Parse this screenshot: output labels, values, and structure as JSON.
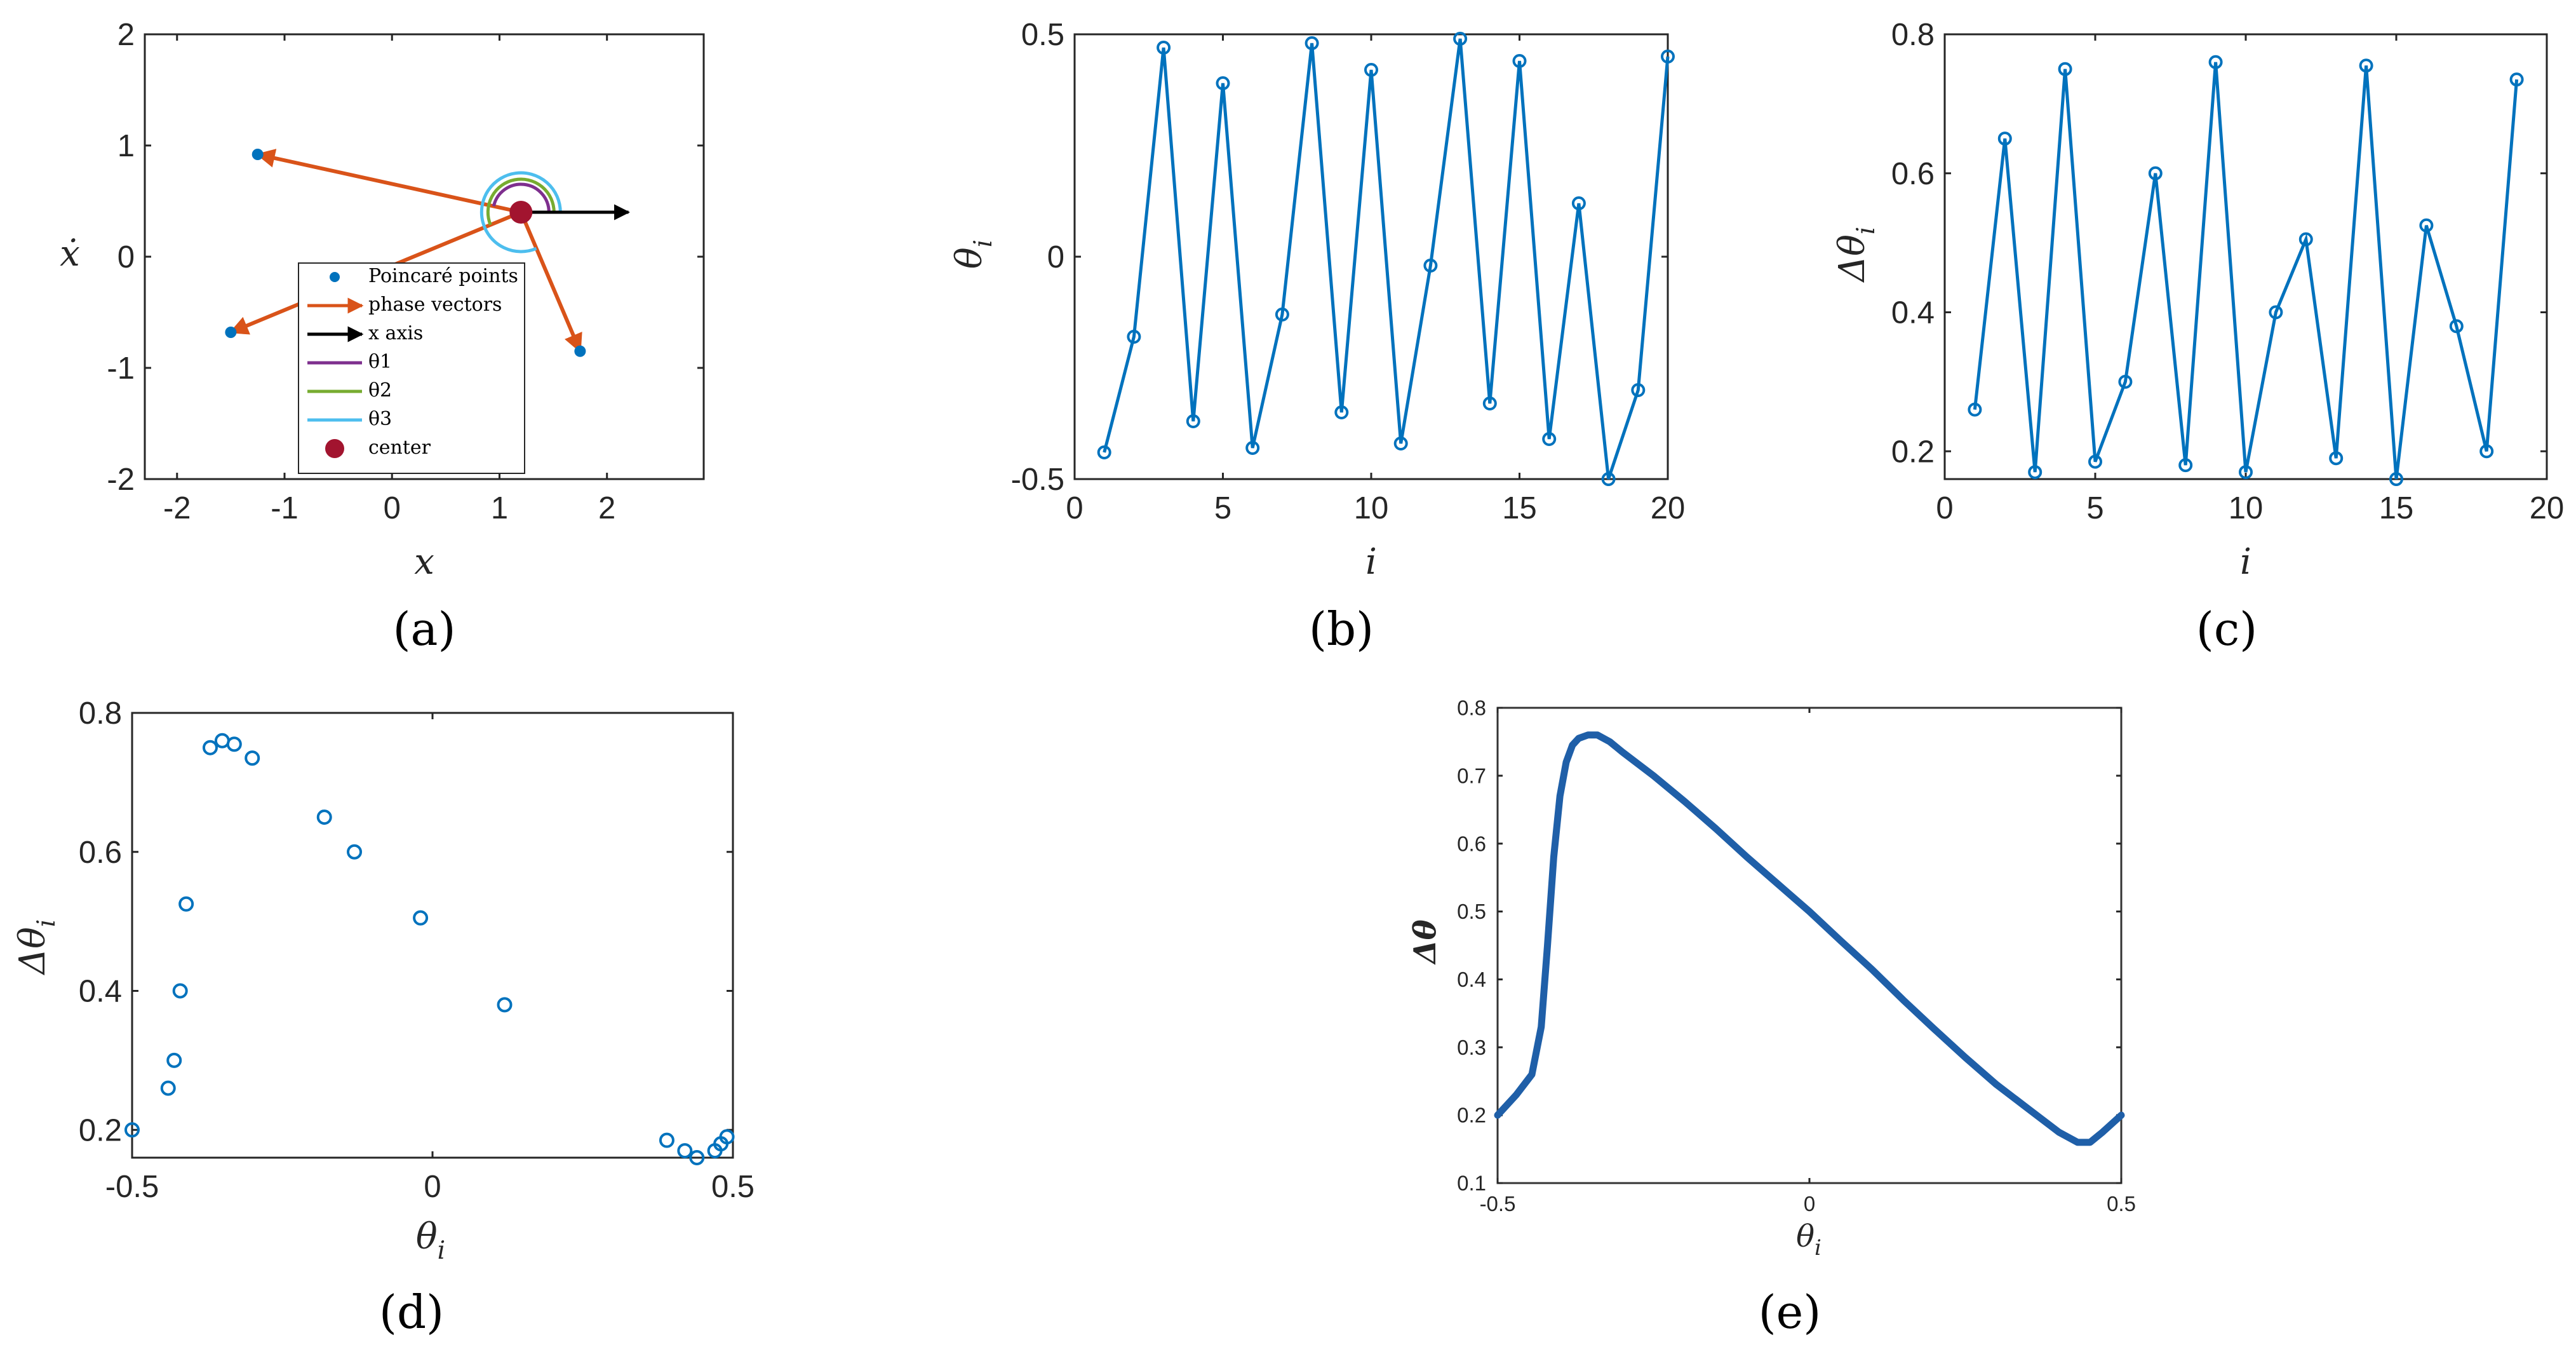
{
  "colors": {
    "series_blue": "#0072BD",
    "phase_orange": "#D95319",
    "theta1_purple": "#7E2F8E",
    "theta2_green": "#77AC30",
    "theta3_cyan": "#4DBEEE",
    "center_red": "#A2142F",
    "axis": "#262626",
    "xaxis_black": "#000000"
  },
  "panel_labels": [
    "(a)",
    "(b)",
    "(c)",
    "(d)",
    "(e)"
  ],
  "chart_data": [
    {
      "id": "a",
      "type": "scatter",
      "xlabel": "x",
      "ylabel": "ẋ",
      "xlim": [
        -2.3,
        2.9
      ],
      "ylim": [
        -2,
        2
      ],
      "xticks": [
        "-2",
        "-1",
        "0",
        "1",
        "2"
      ],
      "yticks": [
        "2",
        "1",
        "0",
        "-1",
        "-2"
      ],
      "center": [
        1.2,
        0.4
      ],
      "poincare_points": [
        [
          -1.25,
          0.92
        ],
        [
          -1.5,
          -0.68
        ],
        [
          1.75,
          -0.85
        ]
      ],
      "x_axis_arrow_end": [
        2.2,
        0.4
      ],
      "legend": [
        {
          "label": "Poincaré points",
          "kind": "dot",
          "color_key": "series_blue"
        },
        {
          "label": "phase vectors",
          "kind": "arrow",
          "color_key": "phase_orange"
        },
        {
          "label": "x axis",
          "kind": "arrow",
          "color_key": "xaxis_black"
        },
        {
          "label": "θ1",
          "kind": "line",
          "color_key": "theta1_purple"
        },
        {
          "label": "θ2",
          "kind": "line",
          "color_key": "theta2_green"
        },
        {
          "label": "θ3",
          "kind": "line",
          "color_key": "theta3_cyan"
        },
        {
          "label": "center",
          "kind": "bigdot",
          "color_key": "center_red"
        }
      ],
      "legend_placement": "bottom-center"
    },
    {
      "id": "b",
      "type": "line",
      "xlabel": "i",
      "ylabel": "θ_i",
      "xlim": [
        0,
        20
      ],
      "ylim": [
        -0.5,
        0.5
      ],
      "xticks": [
        "0",
        "5",
        "10",
        "15",
        "20"
      ],
      "yticks": [
        "0.5",
        "0",
        "-0.5"
      ],
      "x": [
        1,
        2,
        3,
        4,
        5,
        6,
        7,
        8,
        9,
        10,
        11,
        12,
        13,
        14,
        15,
        16,
        17,
        18,
        19,
        20
      ],
      "y": [
        -0.44,
        -0.18,
        0.47,
        -0.37,
        0.39,
        -0.43,
        -0.13,
        0.48,
        -0.35,
        0.42,
        -0.42,
        -0.02,
        0.49,
        -0.33,
        0.44,
        -0.41,
        0.12,
        -0.5,
        -0.3,
        0.45
      ]
    },
    {
      "id": "c",
      "type": "line",
      "xlabel": "i",
      "ylabel": "Δθ_i",
      "xlim": [
        0,
        20
      ],
      "ylim": [
        0.16,
        0.8
      ],
      "xticks": [
        "0",
        "5",
        "10",
        "15",
        "20"
      ],
      "yticks": [
        "0.8",
        "0.6",
        "0.4",
        "0.2"
      ],
      "x": [
        1,
        2,
        3,
        4,
        5,
        6,
        7,
        8,
        9,
        10,
        11,
        12,
        13,
        14,
        15,
        16,
        17,
        18,
        19
      ],
      "y": [
        0.26,
        0.65,
        0.17,
        0.75,
        0.185,
        0.3,
        0.6,
        0.18,
        0.76,
        0.17,
        0.4,
        0.505,
        0.19,
        0.755,
        0.16,
        0.525,
        0.38,
        0.2,
        0.735
      ]
    },
    {
      "id": "d",
      "type": "scatter",
      "xlabel": "θ_i",
      "ylabel": "Δθ_i",
      "xlim": [
        -0.5,
        0.5
      ],
      "ylim": [
        0.16,
        0.8
      ],
      "xticks": [
        "-0.5",
        "0",
        "0.5"
      ],
      "yticks": [
        "0.8",
        "0.6",
        "0.4",
        "0.2"
      ],
      "x": [
        -0.5,
        -0.44,
        -0.43,
        -0.42,
        -0.41,
        -0.37,
        -0.35,
        -0.33,
        -0.3,
        -0.18,
        -0.13,
        -0.02,
        0.12,
        0.39,
        0.42,
        0.44,
        0.47,
        0.48,
        0.49
      ],
      "y": [
        0.2,
        0.26,
        0.3,
        0.4,
        0.525,
        0.75,
        0.76,
        0.755,
        0.735,
        0.65,
        0.6,
        0.505,
        0.38,
        0.185,
        0.17,
        0.16,
        0.17,
        0.18,
        0.19
      ]
    },
    {
      "id": "e",
      "type": "line",
      "xlabel": "θ_i",
      "ylabel": "Δθ",
      "xlim": [
        -0.5,
        0.5
      ],
      "ylim": [
        0.1,
        0.8
      ],
      "xticks": [
        "-0.5",
        "0",
        "0.5"
      ],
      "yticks": [
        "0.8",
        "0.7",
        "0.6",
        "0.5",
        "0.4",
        "0.3",
        "0.2",
        "0.1"
      ],
      "x": [
        -0.5,
        -0.47,
        -0.445,
        -0.43,
        -0.42,
        -0.41,
        -0.4,
        -0.39,
        -0.38,
        -0.37,
        -0.355,
        -0.34,
        -0.32,
        -0.3,
        -0.25,
        -0.2,
        -0.15,
        -0.1,
        -0.05,
        0,
        0.05,
        0.1,
        0.15,
        0.2,
        0.25,
        0.3,
        0.35,
        0.4,
        0.43,
        0.45,
        0.47,
        0.5
      ],
      "y": [
        0.2,
        0.23,
        0.26,
        0.33,
        0.45,
        0.58,
        0.67,
        0.72,
        0.745,
        0.755,
        0.76,
        0.76,
        0.75,
        0.735,
        0.7,
        0.662,
        0.622,
        0.58,
        0.54,
        0.5,
        0.457,
        0.415,
        0.37,
        0.327,
        0.285,
        0.245,
        0.21,
        0.175,
        0.16,
        0.16,
        0.175,
        0.2
      ]
    }
  ]
}
